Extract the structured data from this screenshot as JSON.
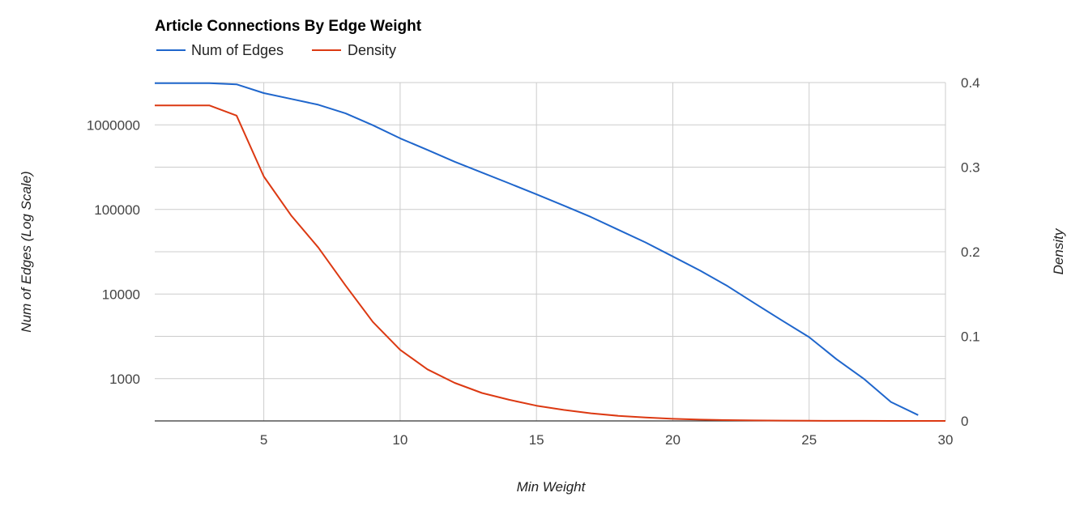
{
  "chart_data": {
    "type": "line",
    "title": "Article Connections By Edge Weight",
    "xlabel": "Min Weight",
    "ylabel_left": "Num of Edges (Log Scale)",
    "ylabel_right": "Density",
    "xlim": [
      1,
      30
    ],
    "ylim_left": [
      316,
      3200000
    ],
    "ylim_right": [
      0,
      0.4
    ],
    "y_left_scale": "log",
    "x_ticks": [
      "5",
      "10",
      "15",
      "20",
      "25",
      "30"
    ],
    "y_left_ticks": [
      "1000",
      "10000",
      "100000",
      "1000000"
    ],
    "y_right_ticks": [
      "0",
      "0.1",
      "0.2",
      "0.3",
      "0.4"
    ],
    "grid": true,
    "legend_position": "top-left",
    "x": [
      1,
      2,
      3,
      4,
      5,
      6,
      7,
      8,
      9,
      10,
      11,
      12,
      13,
      14,
      15,
      16,
      17,
      18,
      19,
      20,
      21,
      22,
      23,
      24,
      25,
      26,
      27,
      28,
      29
    ],
    "series": [
      {
        "name": "Num of Edges",
        "axis": "left",
        "color": "#1f66cc",
        "values": [
          3150000,
          3150000,
          3150000,
          3050000,
          2400000,
          2050000,
          1750000,
          1380000,
          1000000,
          700000,
          510000,
          370000,
          275000,
          205000,
          152000,
          112000,
          82000,
          58000,
          41000,
          28000,
          19000,
          12500,
          7800,
          4900,
          3100,
          1700,
          1000,
          530,
          370
        ]
      },
      {
        "name": "Density",
        "axis": "right",
        "color": "#dc3912",
        "values": [
          0.373,
          0.373,
          0.373,
          0.361,
          0.289,
          0.243,
          0.205,
          0.16,
          0.117,
          0.084,
          0.061,
          0.045,
          0.033,
          0.025,
          0.018,
          0.013,
          0.009,
          0.006,
          0.004,
          0.0025,
          0.0015,
          0.001,
          0.0006,
          0.0004,
          0.0002,
          0.0001,
          0.0001,
          0,
          0
        ]
      }
    ]
  }
}
